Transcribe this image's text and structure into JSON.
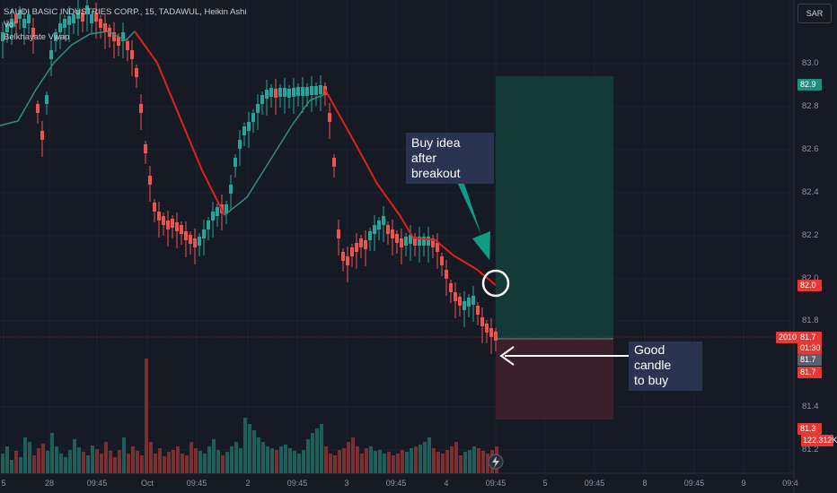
{
  "legend": {
    "symbol_line": "SAUDI BASIC INDUSTRIES CORP., 15, TADAWUL, Heikin Ashi",
    "line2": "Vol",
    "line3": "Belkhayate Vwap"
  },
  "currency_button": "SAR",
  "price_axis": {
    "ticks": [
      "83.0",
      "82.8",
      "82.6",
      "82.4",
      "82.2",
      "82.0",
      "81.8",
      "81.4",
      "81.2"
    ],
    "label_target": "82.9",
    "label_entry_line": "82.0",
    "label_current_left": "2010",
    "label_current": "81.7",
    "label_countdown": "01:30",
    "label_entry": "81.7",
    "label_entry2": "81.7",
    "label_stop": "81.3",
    "label_volume": "122.312K"
  },
  "time_axis": {
    "ticks": [
      "5",
      "28",
      "09:45",
      "Oct",
      "09:45",
      "2",
      "09:45",
      "3",
      "09:45",
      "4",
      "09:45",
      "5",
      "09:45",
      "8",
      "09:45",
      "9",
      "09:4"
    ]
  },
  "annotations": {
    "buy_idea_line1": "Buy idea",
    "buy_idea_line2": "after breakout",
    "good_candle_line1": "Good candle",
    "good_candle_line2": "to buy"
  },
  "colors": {
    "background": "#161a25",
    "up_candle": "#26a69a",
    "down_candle": "#ef5350",
    "target_zone": "#133a37",
    "stop_zone": "#3b1f2a",
    "vwap_up": "#2f8f7f",
    "vwap_down": "#e02020",
    "note_bg": "#2a3450",
    "arrow": "#0f9c84"
  },
  "icons": {
    "replay": "lightning-icon"
  }
}
